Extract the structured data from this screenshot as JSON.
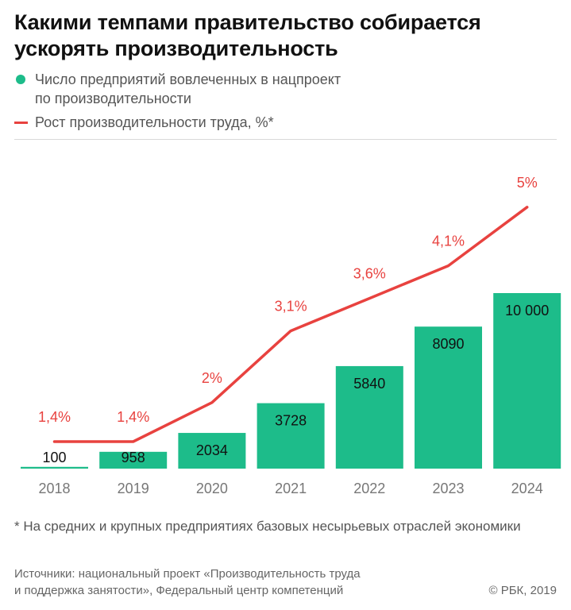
{
  "title": "Какими темпами правительство собирается ускорять производительность",
  "legend": {
    "bars_label_line1": "Число предприятий вовлеченных в нацпроект",
    "bars_label_line2": "по производительности",
    "line_label": "Рост производительности труда, %*"
  },
  "colors": {
    "bars": "#1dbc8a",
    "line": "#e8423f",
    "baseline": "#222222",
    "axis_text": "#777777",
    "bar_text": "#111111"
  },
  "chart_data": {
    "type": "bar",
    "categories": [
      "2018",
      "2019",
      "2020",
      "2021",
      "2022",
      "2023",
      "2024"
    ],
    "series": [
      {
        "name": "Число предприятий вовлеченных в нацпроект по производительности",
        "type": "bar",
        "values": [
          100,
          958,
          2034,
          3728,
          5840,
          8090,
          10000
        ],
        "labels": [
          "100",
          "958",
          "2034",
          "3728",
          "5840",
          "8090",
          "10 000"
        ]
      },
      {
        "name": "Рост производительности труда, %*",
        "type": "line",
        "values": [
          1.4,
          1.4,
          2.0,
          3.1,
          3.6,
          4.1,
          5.0
        ],
        "labels": [
          "1,4%",
          "1,4%",
          "2%",
          "3,1%",
          "3,6%",
          "4,1%",
          "5%"
        ]
      }
    ],
    "legend_position": "top-left",
    "grid": false
  },
  "footnote": "* На средних и крупных предприятиях базовых несырьевых отраслей экономики",
  "sources": {
    "line1": "Источники: национальный проект «Производительность труда",
    "line2": "и поддержка занятости», Федеральный центр компетенций"
  },
  "copyright": "© РБК, 2019"
}
